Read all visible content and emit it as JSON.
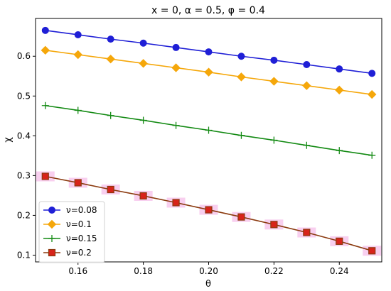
{
  "chart_data": {
    "type": "line",
    "title": "x = 0, α = 0.5, φ = 0.4",
    "xlabel": "θ",
    "ylabel": "χ",
    "xlim": [
      0.147,
      0.253
    ],
    "ylim": [
      0.083,
      0.695
    ],
    "xticks": [
      "0.16",
      "0.18",
      "0.20",
      "0.22",
      "0.24"
    ],
    "yticks": [
      "0.1",
      "0.2",
      "0.3",
      "0.4",
      "0.5",
      "0.6"
    ],
    "x": [
      0.15,
      0.16,
      0.17,
      0.18,
      0.19,
      0.2,
      0.21,
      0.22,
      0.23,
      0.24,
      0.25
    ],
    "series": [
      {
        "name": "ν=0.08",
        "color": "#1f1fd6",
        "marker": "circle",
        "values": [
          0.665,
          0.654,
          0.643,
          0.633,
          0.622,
          0.611,
          0.6,
          0.59,
          0.579,
          0.568,
          0.557
        ]
      },
      {
        "name": "ν=0.1",
        "color": "#f5a70a",
        "marker": "diamond",
        "values": [
          0.615,
          0.604,
          0.593,
          0.582,
          0.571,
          0.56,
          0.548,
          0.537,
          0.526,
          0.515,
          0.504
        ]
      },
      {
        "name": "ν=0.15",
        "color": "#138a13",
        "marker": "plus",
        "values": [
          0.476,
          0.464,
          0.451,
          0.439,
          0.426,
          0.414,
          0.401,
          0.389,
          0.376,
          0.363,
          0.351
        ]
      },
      {
        "name": "ν=0.2",
        "color": "#8b3a0f",
        "marker": "square",
        "marker_fill": "#d8231a",
        "highlight_color": "#f7c7ec",
        "values": [
          0.298,
          0.282,
          0.265,
          0.249,
          0.232,
          0.214,
          0.196,
          0.177,
          0.157,
          0.135,
          0.111
        ]
      }
    ],
    "grid": false,
    "legend": "lower-left"
  }
}
